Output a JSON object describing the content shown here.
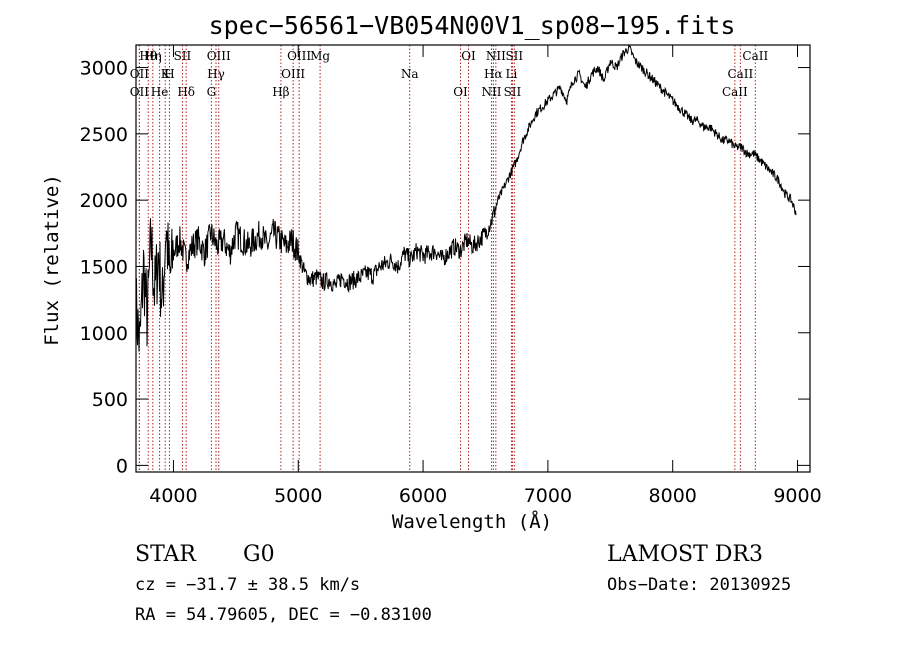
{
  "chart_data": {
    "type": "line",
    "title": "spec−56561−VB054N00V1_sp08−195.fits",
    "xlabel": "Wavelength (Å)",
    "ylabel": "Flux (relative)",
    "xlim": [
      3700,
      9100
    ],
    "ylim": [
      -50,
      3170
    ],
    "xticks": [
      4000,
      5000,
      6000,
      7000,
      8000,
      9000
    ],
    "yticks": [
      0,
      500,
      1000,
      1500,
      2000,
      2500,
      3000
    ],
    "series": [
      {
        "name": "flux",
        "x": [
          3700,
          3730,
          3760,
          3790,
          3820,
          3850,
          3880,
          3910,
          3940,
          3970,
          4000,
          4050,
          4100,
          4150,
          4200,
          4250,
          4300,
          4350,
          4400,
          4450,
          4500,
          4550,
          4600,
          4650,
          4700,
          4750,
          4800,
          4850,
          4900,
          4950,
          5000,
          5050,
          5100,
          5150,
          5200,
          5250,
          5300,
          5350,
          5400,
          5450,
          5500,
          5550,
          5600,
          5650,
          5700,
          5750,
          5800,
          5850,
          5900,
          5950,
          6000,
          6050,
          6100,
          6150,
          6200,
          6250,
          6300,
          6350,
          6400,
          6450,
          6500,
          6550,
          6600,
          6650,
          6700,
          6750,
          6800,
          6850,
          6900,
          6950,
          7000,
          7050,
          7100,
          7150,
          7200,
          7250,
          7300,
          7350,
          7400,
          7450,
          7500,
          7550,
          7600,
          7650,
          7700,
          7750,
          7800,
          7850,
          7900,
          7950,
          8000,
          8050,
          8100,
          8150,
          8200,
          8250,
          8300,
          8350,
          8400,
          8450,
          8500,
          8550,
          8600,
          8650,
          8700,
          8750,
          8800,
          8850,
          8900,
          8950,
          8970,
          8990
        ],
        "values": [
          1200,
          900,
          1500,
          1100,
          1700,
          1300,
          1600,
          1200,
          1800,
          1400,
          1600,
          1700,
          1550,
          1650,
          1700,
          1600,
          1750,
          1650,
          1700,
          1600,
          1750,
          1700,
          1650,
          1700,
          1750,
          1650,
          1750,
          1700,
          1650,
          1700,
          1600,
          1450,
          1400,
          1420,
          1380,
          1400,
          1350,
          1420,
          1380,
          1400,
          1420,
          1450,
          1430,
          1500,
          1520,
          1550,
          1500,
          1600,
          1550,
          1620,
          1580,
          1600,
          1620,
          1550,
          1600,
          1650,
          1620,
          1700,
          1650,
          1700,
          1750,
          1850,
          2000,
          2100,
          2200,
          2300,
          2450,
          2550,
          2650,
          2700,
          2750,
          2800,
          2850,
          2750,
          2900,
          2950,
          2850,
          2950,
          3000,
          2900,
          3050,
          3000,
          3100,
          3150,
          3050,
          3000,
          2950,
          2900,
          2850,
          2800,
          2750,
          2700,
          2650,
          2600,
          2600,
          2550,
          2550,
          2500,
          2450,
          2450,
          2400,
          2400,
          2350,
          2350,
          2300,
          2250,
          2200,
          2150,
          2050,
          2000,
          1950,
          1900
        ]
      }
    ],
    "spectral_lines": [
      {
        "label": "Hθ",
        "x": 3798
      },
      {
        "label": "K",
        "x": 3934
      },
      {
        "label": "Hδ",
        "x": 4102
      },
      {
        "label": "OIII",
        "x": 4363
      },
      {
        "label": "OII",
        "x": 3727
      },
      {
        "label": "He",
        "x": 3889
      },
      {
        "label": "SII",
        "x": 4072
      },
      {
        "label": "Hγ",
        "x": 4341
      },
      {
        "label": "OII",
        "x": 3727
      },
      {
        "label": "Hη",
        "x": 3835
      },
      {
        "label": "H",
        "x": 3968
      },
      {
        "label": "G",
        "x": 4304
      },
      {
        "label": "OIII",
        "x": 5007
      },
      {
        "label": "OIII",
        "x": 4959
      },
      {
        "label": "Hβ",
        "x": 4861
      },
      {
        "label": "Mg",
        "x": 5175
      },
      {
        "label": "Na",
        "x": 5893
      },
      {
        "label": "OI",
        "x": 6300
      },
      {
        "label": "OI",
        "x": 6364
      },
      {
        "label": "Hα",
        "x": 6563
      },
      {
        "label": "SII",
        "x": 6716
      },
      {
        "label": "NII",
        "x": 6583
      },
      {
        "label": "Li",
        "x": 6708
      },
      {
        "label": "NII",
        "x": 6548
      },
      {
        "label": "SII",
        "x": 6731
      },
      {
        "label": "CaII",
        "x": 8542
      },
      {
        "label": "CaII",
        "x": 8498
      },
      {
        "label": "CaII",
        "x": 8662
      }
    ]
  },
  "footer": {
    "object_class": "STAR",
    "subclass": "G0",
    "survey": "LAMOST DR3",
    "cz": "cz = −31.7 ± 38.5 km/s",
    "obs_date": "Obs−Date: 20130925",
    "coords": "RA =  54.79605, DEC =  −0.83100"
  }
}
